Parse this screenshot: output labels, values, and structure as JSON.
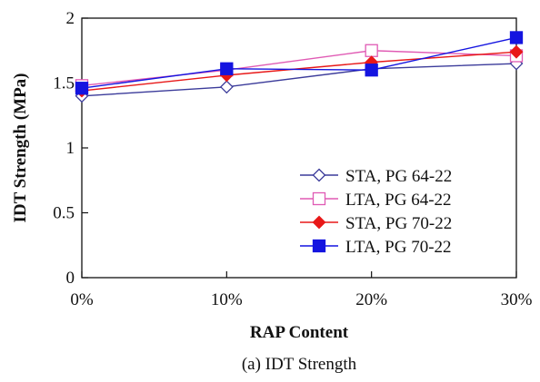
{
  "caption": "(a) IDT Strength",
  "chart_data": {
    "type": "line",
    "categories": [
      "0%",
      "10%",
      "20%",
      "30%"
    ],
    "xlabel": "RAP Content",
    "ylabel": "IDT Strength (MPa)",
    "ylim": [
      0,
      2
    ],
    "yticks": [
      "0",
      "0.5",
      "1",
      "1.5",
      "2"
    ],
    "grid": false,
    "legend_position": "bottom-right",
    "series": [
      {
        "name": "STA, PG 64-22",
        "values": [
          1.4,
          1.47,
          1.61,
          1.65
        ],
        "color": "#3b3b9a",
        "marker": "diamond-open"
      },
      {
        "name": "LTA, PG 64-22",
        "values": [
          1.48,
          1.6,
          1.75,
          1.71
        ],
        "color": "#e05ab4",
        "marker": "square-open"
      },
      {
        "name": "STA, PG 70-22",
        "values": [
          1.44,
          1.56,
          1.66,
          1.74
        ],
        "color": "#e81818",
        "marker": "diamond-filled"
      },
      {
        "name": "LTA, PG 70-22",
        "values": [
          1.46,
          1.61,
          1.6,
          1.85
        ],
        "color": "#1414e0",
        "marker": "square-filled"
      }
    ]
  }
}
